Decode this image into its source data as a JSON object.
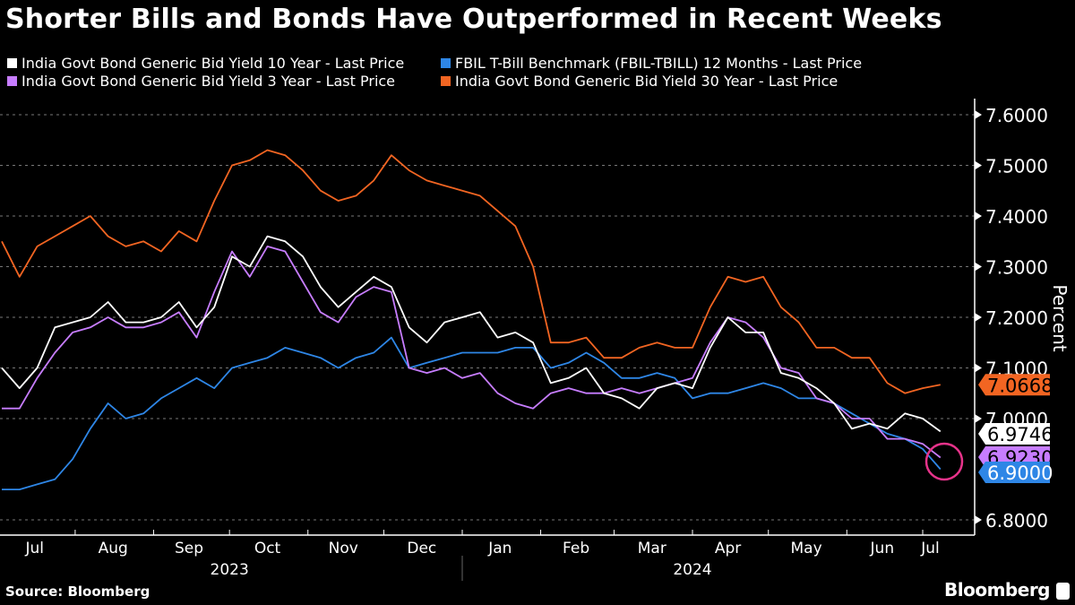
{
  "title": "Shorter Bills and Bonds Have Outperformed in Recent Weeks",
  "source": "Source: Bloomberg",
  "brand": "Bloomberg",
  "chart_data": {
    "type": "line",
    "title": "Shorter Bills and Bonds Have Outperformed in Recent Weeks",
    "ylabel": "Percent",
    "ylim": [
      6.75,
      7.65
    ],
    "yticks": [
      "7.6000",
      "7.5000",
      "7.4000",
      "7.3000",
      "7.2000",
      "7.1000",
      "7.0000",
      "6.8000"
    ],
    "ytick_values": [
      7.6,
      7.5,
      7.4,
      7.3,
      7.2,
      7.1,
      7.0,
      6.8
    ],
    "xlim": [
      "2023-07-01",
      "2024-07-15"
    ],
    "month_ticks": [
      {
        "label": "Jul",
        "date": "2023-07-16"
      },
      {
        "label": "Aug",
        "date": "2023-08-16"
      },
      {
        "label": "Sep",
        "date": "2023-09-15"
      },
      {
        "label": "Oct",
        "date": "2023-10-16"
      },
      {
        "label": "Nov",
        "date": "2023-11-15"
      },
      {
        "label": "Dec",
        "date": "2023-12-16"
      },
      {
        "label": "Jan",
        "date": "2024-01-16"
      },
      {
        "label": "Feb",
        "date": "2024-02-15"
      },
      {
        "label": "Mar",
        "date": "2024-03-16"
      },
      {
        "label": "Apr",
        "date": "2024-04-15"
      },
      {
        "label": "May",
        "date": "2024-05-16"
      },
      {
        "label": "Jun",
        "date": "2024-06-15"
      },
      {
        "label": "Jul",
        "date": "2024-07-04"
      }
    ],
    "years": [
      {
        "label": "2023",
        "date": "2023-10-01"
      },
      {
        "label": "2024",
        "date": "2024-04-01"
      }
    ],
    "grid": true,
    "legend_placement": "top-left",
    "x": [
      "2023-07-03",
      "2023-07-10",
      "2023-07-17",
      "2023-07-24",
      "2023-07-31",
      "2023-08-07",
      "2023-08-14",
      "2023-08-21",
      "2023-08-28",
      "2023-09-04",
      "2023-09-11",
      "2023-09-18",
      "2023-09-25",
      "2023-10-02",
      "2023-10-09",
      "2023-10-16",
      "2023-10-23",
      "2023-10-30",
      "2023-11-06",
      "2023-11-13",
      "2023-11-20",
      "2023-11-27",
      "2023-12-04",
      "2023-12-11",
      "2023-12-18",
      "2023-12-25",
      "2024-01-01",
      "2024-01-08",
      "2024-01-15",
      "2024-01-22",
      "2024-01-29",
      "2024-02-05",
      "2024-02-12",
      "2024-02-19",
      "2024-02-26",
      "2024-03-04",
      "2024-03-11",
      "2024-03-18",
      "2024-03-25",
      "2024-04-01",
      "2024-04-08",
      "2024-04-15",
      "2024-04-22",
      "2024-04-29",
      "2024-05-06",
      "2024-05-13",
      "2024-05-20",
      "2024-05-27",
      "2024-06-03",
      "2024-06-10",
      "2024-06-17",
      "2024-06-24",
      "2024-07-01",
      "2024-07-08"
    ],
    "series": [
      {
        "name": "India Govt Bond Generic Bid Yield 10 Year - Last Price",
        "color": "#ffffff",
        "last": "6.9746",
        "label_text": "#000000",
        "values": [
          7.1,
          7.06,
          7.1,
          7.18,
          7.19,
          7.2,
          7.23,
          7.19,
          7.19,
          7.2,
          7.23,
          7.18,
          7.22,
          7.32,
          7.3,
          7.36,
          7.35,
          7.32,
          7.26,
          7.22,
          7.25,
          7.28,
          7.26,
          7.18,
          7.15,
          7.19,
          7.2,
          7.21,
          7.16,
          7.17,
          7.15,
          7.07,
          7.08,
          7.1,
          7.05,
          7.04,
          7.02,
          7.06,
          7.07,
          7.06,
          7.14,
          7.2,
          7.17,
          7.17,
          7.09,
          7.08,
          7.06,
          7.03,
          6.98,
          6.99,
          6.98,
          7.01,
          7.0,
          6.9746
        ]
      },
      {
        "name": "FBIL T-Bill Benchmark (FBIL-TBILL) 12 Months - Last Price",
        "color": "#2e86e6",
        "last": "6.9000",
        "label_text": "#ffffff",
        "values": [
          6.86,
          6.86,
          6.87,
          6.88,
          6.92,
          6.98,
          7.03,
          7.0,
          7.01,
          7.04,
          7.06,
          7.08,
          7.06,
          7.1,
          7.11,
          7.12,
          7.14,
          7.13,
          7.12,
          7.1,
          7.12,
          7.13,
          7.16,
          7.1,
          7.11,
          7.12,
          7.13,
          7.13,
          7.13,
          7.14,
          7.14,
          7.1,
          7.11,
          7.13,
          7.11,
          7.08,
          7.08,
          7.09,
          7.08,
          7.04,
          7.05,
          7.05,
          7.06,
          7.07,
          7.06,
          7.04,
          7.04,
          7.03,
          7.01,
          6.99,
          6.97,
          6.96,
          6.94,
          6.9
        ]
      },
      {
        "name": "India Govt Bond Generic Bid Yield 3 Year - Last Price",
        "color": "#c77dff",
        "last": "6.9230",
        "label_text": "#000000",
        "values": [
          7.02,
          7.02,
          7.08,
          7.13,
          7.17,
          7.18,
          7.2,
          7.18,
          7.18,
          7.19,
          7.21,
          7.16,
          7.25,
          7.33,
          7.28,
          7.34,
          7.33,
          7.27,
          7.21,
          7.19,
          7.24,
          7.26,
          7.25,
          7.1,
          7.09,
          7.1,
          7.08,
          7.09,
          7.05,
          7.03,
          7.02,
          7.05,
          7.06,
          7.05,
          7.05,
          7.06,
          7.05,
          7.06,
          7.07,
          7.08,
          7.15,
          7.2,
          7.19,
          7.16,
          7.1,
          7.09,
          7.04,
          7.03,
          7.0,
          7.0,
          6.96,
          6.96,
          6.95,
          6.923
        ]
      },
      {
        "name": "India Govt Bond Generic Bid Yield 30 Year - Last Price",
        "color": "#f26522",
        "last": "7.0668",
        "label_text": "#000000",
        "values": [
          7.35,
          7.28,
          7.34,
          7.36,
          7.38,
          7.4,
          7.36,
          7.34,
          7.35,
          7.33,
          7.37,
          7.35,
          7.43,
          7.5,
          7.51,
          7.53,
          7.52,
          7.49,
          7.45,
          7.43,
          7.44,
          7.47,
          7.52,
          7.49,
          7.47,
          7.46,
          7.45,
          7.44,
          7.41,
          7.38,
          7.3,
          7.15,
          7.15,
          7.16,
          7.12,
          7.12,
          7.14,
          7.15,
          7.14,
          7.14,
          7.22,
          7.28,
          7.27,
          7.28,
          7.22,
          7.19,
          7.14,
          7.14,
          7.12,
          7.12,
          7.07,
          7.05,
          7.06,
          7.0668
        ]
      }
    ],
    "annotation_circle_color": "#e6338a"
  }
}
